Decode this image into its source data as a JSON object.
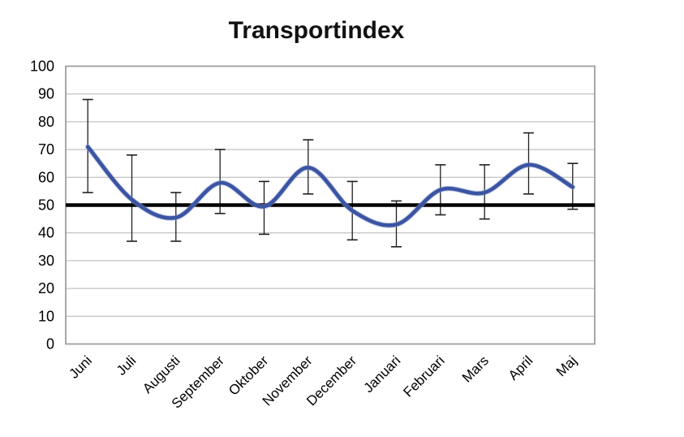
{
  "page": {
    "background": "#ffffff"
  },
  "chart_data": {
    "type": "line",
    "title": "Transportindex",
    "categories": [
      "Juni",
      "Juli",
      "Augusti",
      "September",
      "Oktober",
      "November",
      "December",
      "Januari",
      "Februari",
      "Mars",
      "April",
      "Maj"
    ],
    "series": [
      {
        "name": "Transportindex",
        "values": [
          71,
          52,
          45.5,
          58,
          49.5,
          63.5,
          48,
          43,
          55.5,
          54.5,
          64.5,
          56.5
        ],
        "color": "#3b54a3",
        "halo_color": "#8d9cce",
        "smooth": true,
        "line_width": 4.6
      }
    ],
    "error_bars": {
      "low": [
        54.5,
        37,
        37,
        47,
        39.5,
        54,
        37.5,
        35,
        46.5,
        45,
        54,
        48.5
      ],
      "high": [
        88,
        68,
        54.5,
        70,
        58.5,
        73.5,
        58.5,
        51.5,
        64.5,
        64.5,
        76,
        65
      ],
      "color": "#1f1f1f",
      "cap_width": 13
    },
    "reference_line": {
      "value": 50,
      "color": "#000000",
      "width": 4.5
    },
    "ylim": [
      0,
      100
    ],
    "yticks": [
      0,
      10,
      20,
      30,
      40,
      50,
      60,
      70,
      80,
      90,
      100
    ],
    "grid": true,
    "grid_color": "#b3b3b3",
    "border_color": "#9e9e9e",
    "legend": "none",
    "xlabel": "",
    "ylabel": "",
    "marker": "none"
  }
}
